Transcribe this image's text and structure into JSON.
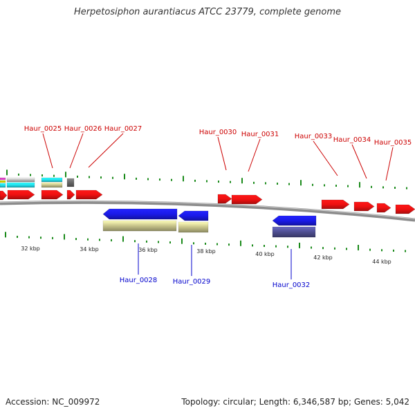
{
  "title": "Herpetosiphon aurantiacus ATCC 23779, complete genome",
  "footer": {
    "accession": "Accession: NC_009972",
    "summary": "Topology: circular; Length: 6,346,587 bp; Genes: 5,042"
  },
  "colors": {
    "forward_gene": "#ee1111",
    "reverse_gene": "#1a1ae8",
    "forward_label": "#cc0000",
    "reverse_label": "#0000cc",
    "tick": "#1a8a1a",
    "backbone": "#8c8c8c",
    "khaki": "#c7c38a",
    "slate": "#4e4e90"
  },
  "scale_labels": [
    "32 kbp",
    "34 kbp",
    "36 kbp",
    "38 kbp",
    "40 kbp",
    "42 kbp",
    "44 kbp"
  ],
  "forward_gene_labels": [
    "Haur_0025",
    "Haur_0026",
    "Haur_0027",
    "Haur_0030",
    "Haur_0031",
    "Haur_0033",
    "Haur_0034",
    "Haur_0035"
  ],
  "reverse_gene_labels": [
    "Haur_0028",
    "Haur_0029",
    "Haur_0032"
  ]
}
